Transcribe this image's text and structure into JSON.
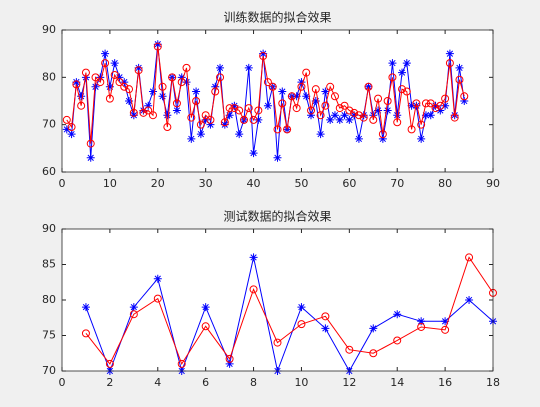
{
  "chart_data": [
    {
      "type": "line",
      "title": "训练数据的拟合效果",
      "x": [
        1,
        2,
        3,
        4,
        5,
        6,
        7,
        8,
        9,
        10,
        11,
        12,
        13,
        14,
        15,
        16,
        17,
        18,
        19,
        20,
        21,
        22,
        23,
        24,
        25,
        26,
        27,
        28,
        29,
        30,
        31,
        32,
        33,
        34,
        35,
        36,
        37,
        38,
        39,
        40,
        41,
        42,
        43,
        44,
        45,
        46,
        47,
        48,
        49,
        50,
        51,
        52,
        53,
        54,
        55,
        56,
        57,
        58,
        59,
        60,
        61,
        62,
        63,
        64,
        65,
        66,
        67,
        68,
        69,
        70,
        71,
        72,
        73,
        74,
        75,
        76,
        77,
        78,
        79,
        80,
        81,
        82,
        83,
        84
      ],
      "series": [
        {
          "color": "#0000ff",
          "marker": "star",
          "values": [
            69,
            68,
            79,
            76,
            80,
            63,
            78,
            80,
            85,
            78,
            83,
            80,
            79,
            75,
            72,
            82,
            73,
            74,
            77,
            87,
            76,
            72,
            80,
            73,
            80,
            79,
            67,
            77,
            68,
            71,
            70,
            78,
            82,
            70,
            72,
            74,
            68,
            71,
            82,
            64,
            71,
            85,
            74,
            78,
            63,
            77,
            69,
            76,
            76,
            79,
            76,
            72,
            75,
            68,
            77,
            71,
            72,
            71,
            72,
            71,
            72,
            67,
            72,
            78,
            72,
            73,
            67,
            73,
            83,
            72,
            81,
            83,
            74,
            74,
            67,
            72,
            72,
            74,
            73,
            74,
            85,
            72,
            82,
            75
          ]
        },
        {
          "color": "#ff0000",
          "marker": "circle",
          "values": [
            71,
            69.5,
            78.5,
            74,
            81,
            66,
            80,
            79,
            83,
            75.5,
            80.5,
            79,
            78,
            77.5,
            72.5,
            81.5,
            72.5,
            73,
            72,
            86.5,
            78,
            69.5,
            80,
            74.5,
            79,
            82,
            71.5,
            75,
            70,
            72,
            71,
            77,
            80,
            70.5,
            73.5,
            73.5,
            73,
            71,
            73.5,
            71,
            73,
            84.5,
            79,
            78,
            69,
            74.5,
            69,
            76,
            73.5,
            78,
            81,
            73,
            77.5,
            72,
            74,
            78,
            76,
            73.5,
            74,
            73,
            72.5,
            72,
            71.5,
            78,
            71,
            75.5,
            68,
            75,
            80,
            70.5,
            77.5,
            77,
            69,
            74.5,
            70,
            74.5,
            74.5,
            73.5,
            74,
            75.5,
            83,
            71.5,
            79.5,
            76
          ]
        }
      ],
      "xlim": [
        0,
        90
      ],
      "xticks": [
        0,
        10,
        20,
        30,
        40,
        50,
        60,
        70,
        80,
        90
      ],
      "ylim": [
        60,
        90
      ],
      "yticks": [
        60,
        70,
        80,
        90
      ]
    },
    {
      "type": "line",
      "title": "测试数据的拟合效果",
      "x": [
        1,
        2,
        3,
        4,
        5,
        6,
        7,
        8,
        9,
        10,
        11,
        12,
        13,
        14,
        15,
        16,
        17,
        18
      ],
      "series": [
        {
          "color": "#0000ff",
          "marker": "star",
          "values": [
            79,
            70,
            79,
            83,
            70,
            79,
            71,
            86,
            70,
            79,
            76,
            70,
            76,
            78,
            77,
            77,
            80,
            77
          ]
        },
        {
          "color": "#ff0000",
          "marker": "circle",
          "values": [
            75.3,
            71,
            78,
            80.2,
            71,
            76.3,
            71.7,
            81.5,
            74,
            76.6,
            77.7,
            73,
            72.5,
            74.3,
            76.2,
            75.8,
            86,
            81
          ]
        }
      ],
      "xlim": [
        0,
        18
      ],
      "xticks": [
        0,
        2,
        4,
        6,
        8,
        10,
        12,
        14,
        16,
        18
      ],
      "ylim": [
        70,
        90
      ],
      "yticks": [
        70,
        75,
        80,
        85,
        90
      ]
    }
  ]
}
